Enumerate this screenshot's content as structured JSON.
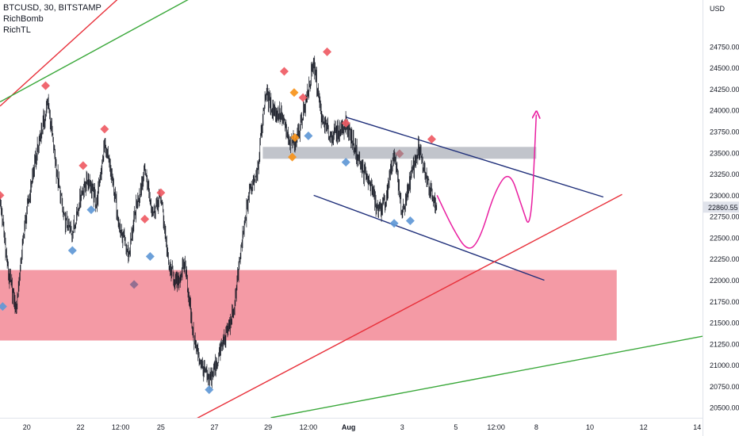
{
  "legend": {
    "symbol_line": "BTCUSD, 30, BITSTAMP",
    "indicators": [
      "RichBomb",
      "RichTL"
    ]
  },
  "chart_data": {
    "type": "line",
    "title": "",
    "xlabel": "",
    "ylabel": "",
    "symbol": "BTCUSD",
    "interval": "30",
    "exchange": "BITSTAMP",
    "price_axis_unit": "USD",
    "price_axis_ticks": [
      20500,
      20750,
      21000,
      21250,
      21500,
      21750,
      22000,
      22250,
      22500,
      22750,
      23000,
      23250,
      23500,
      23750,
      24000,
      24250,
      24500,
      24750
    ],
    "price_axis_labels": [
      "20500.00",
      "20750.00",
      "21000.00",
      "21250.00",
      "21500.00",
      "21750.00",
      "22000.00",
      "22250.00",
      "22500.00",
      "22750.00",
      "23000.00",
      "23250.00",
      "23500.00",
      "23750.00",
      "24000.00",
      "24250.00",
      "24500.00",
      "24750.00"
    ],
    "ylim": [
      20380,
      25300
    ],
    "time_axis_labels": [
      "20",
      "22",
      "12:00",
      "25",
      "27",
      "29",
      "12:00",
      "Aug",
      "3",
      "5",
      "12:00",
      "8",
      "10",
      "12",
      "14"
    ],
    "time_axis_ticks_days": [
      20,
      22,
      23.5,
      25,
      27,
      29,
      30.5,
      32,
      34,
      36,
      37.5,
      39,
      41,
      43,
      45
    ],
    "xlim_days": [
      19,
      45.2
    ],
    "last_price": 22860.55,
    "last_price_label": "22860.55",
    "price_series": {
      "name": "",
      "t_days": [
        19.0,
        19.3,
        19.6,
        19.9,
        20.2,
        20.5,
        20.8,
        21.1,
        21.4,
        21.7,
        22.0,
        22.3,
        22.6,
        22.9,
        23.2,
        23.5,
        23.8,
        24.1,
        24.4,
        24.7,
        25.0,
        25.3,
        25.6,
        25.9,
        26.2,
        26.5,
        26.8,
        27.1,
        27.4,
        27.7,
        28.0,
        28.3,
        28.6,
        28.9,
        29.2,
        29.5,
        29.8,
        30.1,
        30.4,
        30.7,
        31.0,
        31.3,
        31.6,
        31.9,
        32.2,
        32.5,
        32.8,
        33.1,
        33.4,
        33.7,
        34.0,
        34.3,
        34.6,
        34.9,
        35.3
      ],
      "close": [
        22950,
        22100,
        21650,
        22600,
        23200,
        23700,
        24100,
        23300,
        22700,
        22550,
        23000,
        23200,
        22900,
        23600,
        23150,
        22550,
        22300,
        22900,
        23300,
        22800,
        23000,
        22150,
        21950,
        22200,
        21350,
        21000,
        20800,
        21050,
        21350,
        21600,
        22400,
        23050,
        23300,
        24200,
        24000,
        23950,
        23600,
        23700,
        24100,
        24550,
        23900,
        23700,
        23750,
        23850,
        23600,
        23300,
        23150,
        22800,
        22950,
        23500,
        22750,
        23200,
        23550,
        23200,
        22860.55
      ]
    },
    "forecast_path": {
      "name": "",
      "t_days": [
        35.3,
        35.9,
        36.45,
        36.9,
        37.45,
        38.0,
        38.45,
        38.8,
        39.0
      ],
      "price": [
        23000,
        22600,
        22330,
        22480,
        23050,
        23300,
        22880,
        22550,
        23950
      ]
    },
    "zones": [
      {
        "name": "resistance-zone",
        "t_start_days": 28.8,
        "t_end_days": 39.0,
        "price_low": 23430,
        "price_high": 23570,
        "color": "#b2b5be"
      },
      {
        "name": "support-zone",
        "t_start_days": 19.0,
        "t_end_days": 42.0,
        "price_low": 21290,
        "price_high": 22120,
        "color": "#f28c99"
      }
    ],
    "trendlines": [
      {
        "name": "channel-upper",
        "color": "#1f2f7a",
        "points": [
          [
            31.9,
            23920
          ],
          [
            41.5,
            22980
          ]
        ]
      },
      {
        "name": "channel-lower",
        "color": "#1f2f7a",
        "points": [
          [
            30.7,
            23000
          ],
          [
            39.3,
            22000
          ]
        ]
      },
      {
        "name": "red-trendline-outer",
        "color": "#e8303a",
        "points": [
          [
            19.0,
            24050
          ],
          [
            25.1,
            25800
          ]
        ]
      },
      {
        "name": "green-trendline-outer",
        "color": "#3aa83a",
        "points": [
          [
            19.0,
            24100
          ],
          [
            28.9,
            25800
          ]
        ]
      },
      {
        "name": "red-rising-trendline",
        "color": "#e8303a",
        "points": [
          [
            25.0,
            20150
          ],
          [
            42.2,
            23010
          ]
        ]
      },
      {
        "name": "green-rising-trendline",
        "color": "#3aa83a",
        "points": [
          [
            29.1,
            20380
          ],
          [
            45.2,
            21340
          ]
        ]
      }
    ],
    "markers": [
      {
        "t_days": 19.0,
        "price": 23000,
        "color": "#ef5b64"
      },
      {
        "t_days": 19.1,
        "price": 21690,
        "color": "#5f98d6"
      },
      {
        "t_days": 20.7,
        "price": 24290,
        "color": "#ef5b64"
      },
      {
        "t_days": 21.7,
        "price": 22350,
        "color": "#5f98d6"
      },
      {
        "t_days": 22.1,
        "price": 23350,
        "color": "#ef5b64"
      },
      {
        "t_days": 22.4,
        "price": 22830,
        "color": "#5f98d6"
      },
      {
        "t_days": 22.9,
        "price": 23780,
        "color": "#ef5b64"
      },
      {
        "t_days": 24.0,
        "price": 21950,
        "color": "#8a6b8f"
      },
      {
        "t_days": 24.4,
        "price": 22720,
        "color": "#ef5b64"
      },
      {
        "t_days": 24.6,
        "price": 22280,
        "color": "#5f98d6"
      },
      {
        "t_days": 25.0,
        "price": 23030,
        "color": "#ef5b64"
      },
      {
        "t_days": 26.8,
        "price": 20710,
        "color": "#5f98d6"
      },
      {
        "t_days": 29.6,
        "price": 24460,
        "color": "#ef5b64"
      },
      {
        "t_days": 29.9,
        "price": 23450,
        "color": "#f7931a"
      },
      {
        "t_days": 29.97,
        "price": 24210,
        "color": "#f7931a"
      },
      {
        "t_days": 30.0,
        "price": 23680,
        "color": "#f7931a"
      },
      {
        "t_days": 30.3,
        "price": 24150,
        "color": "#ef5b64"
      },
      {
        "t_days": 30.5,
        "price": 23700,
        "color": "#5f98d6"
      },
      {
        "t_days": 31.2,
        "price": 24690,
        "color": "#ef5b64"
      },
      {
        "t_days": 31.9,
        "price": 23850,
        "color": "#ef5b64"
      },
      {
        "t_days": 31.9,
        "price": 23390,
        "color": "#5f98d6"
      },
      {
        "t_days": 33.7,
        "price": 22670,
        "color": "#5f98d6"
      },
      {
        "t_days": 33.9,
        "price": 23490,
        "color": "#b07580"
      },
      {
        "t_days": 34.3,
        "price": 22700,
        "color": "#5f98d6"
      },
      {
        "t_days": 35.1,
        "price": 23660,
        "color": "#ef5b64"
      }
    ],
    "grid": false,
    "legend_position": "top-left",
    "colors": {
      "candle": "#131722",
      "forecast": "#e91ea0",
      "axis_text": "#131722",
      "axis_line": "#e0e3eb",
      "price_tag_bg": "#e0e3eb"
    }
  }
}
